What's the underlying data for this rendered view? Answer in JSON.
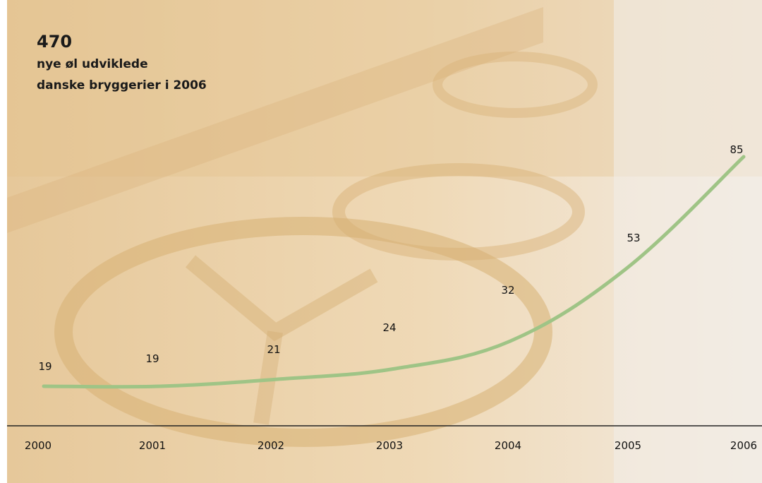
{
  "header": {
    "value": "470",
    "line1": "nye øl udviklede",
    "line2": "danske bryggerier i 2006"
  },
  "colors": {
    "line": "#9fc486",
    "axis": "#222222",
    "background_tint": "#ead2a8"
  },
  "chart_data": {
    "type": "line",
    "title": "",
    "xlabel": "",
    "ylabel": "",
    "x": [
      "2000",
      "2001",
      "2002",
      "2003",
      "2004",
      "2005",
      "2006"
    ],
    "series": [
      {
        "values": [
          19,
          19,
          21,
          24,
          32,
          53,
          85
        ]
      }
    ],
    "data_labels": [
      "19",
      "19",
      "21",
      "24",
      "32",
      "53",
      "85"
    ],
    "ylim": [
      19,
      85
    ],
    "grid": false,
    "legend": "none"
  }
}
